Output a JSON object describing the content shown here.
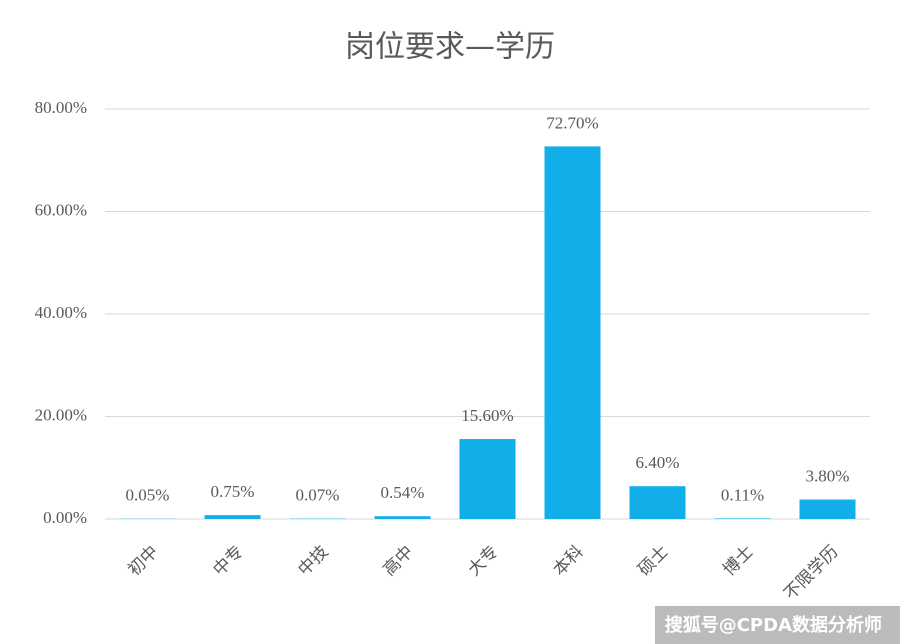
{
  "chart_data": {
    "type": "bar",
    "title": "岗位要求—学历",
    "categories": [
      "初中",
      "中专",
      "中技",
      "高中",
      "大专",
      "本科",
      "硕士",
      "博士",
      "不限学历"
    ],
    "values": [
      0.05,
      0.75,
      0.07,
      0.54,
      15.6,
      72.7,
      6.4,
      0.11,
      3.8
    ],
    "value_labels": [
      "0.05%",
      "0.75%",
      "0.07%",
      "0.54%",
      "15.60%",
      "72.70%",
      "6.40%",
      "0.11%",
      "3.80%"
    ],
    "color": "#12aeea",
    "ylim": [
      0,
      80
    ],
    "yticks": [
      {
        "value": 0,
        "label": "0.00%"
      },
      {
        "value": 20,
        "label": "20.00%"
      },
      {
        "value": 40,
        "label": "40.00%"
      },
      {
        "value": 60,
        "label": "60.00%"
      },
      {
        "value": 80,
        "label": "80.00%"
      }
    ],
    "grid": true,
    "watermark": "搜狐号@CPDA数据分析师"
  }
}
